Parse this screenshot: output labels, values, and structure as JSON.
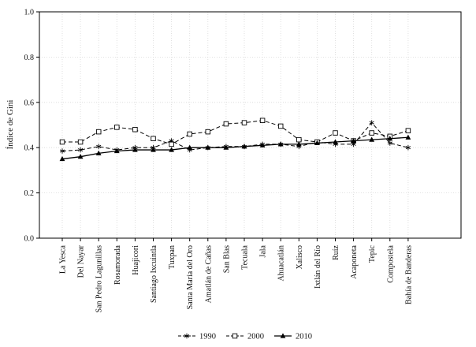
{
  "chart_data": {
    "type": "line",
    "title": "",
    "xlabel": "",
    "ylabel": "Índice de Gini",
    "ylim": [
      0,
      1
    ],
    "yticks": [
      "0.0",
      "0.2",
      "0.4",
      "0.6",
      "0.8",
      "1.0"
    ],
    "grid": true,
    "legend_position": "bottom-center",
    "categories": [
      "La Yesca",
      "Del Nayar",
      "San Pedro Lagunillas",
      "Rosamorada",
      "Huajicori",
      "Santiago Ixcuintla",
      "Tuxpan",
      "Santa María del Oro",
      "Amatlán de Cañas",
      "San Blas",
      "Tecuala",
      "Jala",
      "Ahuacatlán",
      "Xalisco",
      "Ixtlán del Río",
      "Ruíz",
      "Acaponeta",
      "Tepic",
      "Compostela",
      "Bahía de Banderas"
    ],
    "series": [
      {
        "name": "1990",
        "marker": "asterisk",
        "dash": "dash",
        "values": [
          0.385,
          0.39,
          0.405,
          0.39,
          0.4,
          0.4,
          0.43,
          0.39,
          0.4,
          0.405,
          0.405,
          0.415,
          0.415,
          0.405,
          0.425,
          0.415,
          0.415,
          0.51,
          0.42,
          0.4
        ]
      },
      {
        "name": "2000",
        "marker": "square",
        "dash": "dash",
        "values": [
          0.425,
          0.425,
          0.47,
          0.49,
          0.48,
          0.44,
          0.415,
          0.46,
          0.47,
          0.505,
          0.51,
          0.52,
          0.495,
          0.435,
          0.425,
          0.465,
          0.43,
          0.465,
          0.45,
          0.475
        ]
      },
      {
        "name": "2010",
        "marker": "triangle",
        "dash": "solid",
        "values": [
          0.35,
          0.36,
          0.375,
          0.385,
          0.39,
          0.39,
          0.39,
          0.4,
          0.4,
          0.4,
          0.405,
          0.41,
          0.415,
          0.415,
          0.42,
          0.425,
          0.43,
          0.435,
          0.44,
          0.445
        ]
      }
    ]
  }
}
